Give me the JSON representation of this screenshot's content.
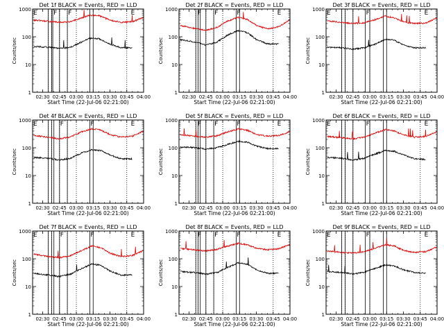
{
  "chart_data": {
    "type": "line",
    "y_scale": "log",
    "ylim": [
      1,
      1000
    ],
    "xlim": [
      "02:21",
      "04:00"
    ],
    "x_ticks": [
      "02:30",
      "02:45",
      "03:00",
      "03:15",
      "03:30",
      "03:45",
      "04:00"
    ],
    "y_ticks": [
      "1",
      "10",
      "100",
      "1000"
    ],
    "ylabel": "Counts/sec",
    "xlabel": "Start Time (22-Jul-06 02:21:00)",
    "colors": {
      "events": "#000000",
      "lld": "#e00000"
    },
    "panels": [
      {
        "title": "Det 1f BLACK = Events, RED = LLD",
        "marker_lines": [
          "02:35",
          "02:38",
          "02:39",
          "02:45",
          "02:52",
          "03:12",
          "03:15"
        ],
        "dotted_lines": [
          "02:35",
          "02:38",
          "02:45",
          "02:52",
          "03:00",
          "03:45"
        ],
        "markers": [
          {
            "label": "E",
            "at": "02:21"
          },
          {
            "label": "F",
            "at": "02:39"
          },
          {
            "label": "F",
            "at": "02:52"
          },
          {
            "label": "E",
            "at": "03:48"
          }
        ],
        "series": [
          {
            "name": "LLD",
            "x": [
              "02:21",
              "02:35",
              "02:45",
              "02:55",
              "03:05",
              "03:12",
              "03:20",
              "03:30",
              "03:40",
              "03:50",
              "04:00"
            ],
            "y": [
              400,
              360,
              330,
              350,
              480,
              600,
              580,
              400,
              330,
              350,
              500
            ]
          },
          {
            "name": "Events",
            "x": [
              "02:21",
              "02:35",
              "02:45",
              "02:55",
              "03:05",
              "03:12",
              "03:20",
              "03:30",
              "03:40",
              "03:50"
            ],
            "y": [
              45,
              42,
              38,
              42,
              65,
              88,
              85,
              55,
              40,
              40
            ]
          }
        ]
      },
      {
        "title": "Det 2f BLACK = Events, RED = LLD",
        "marker_lines": [
          "02:36",
          "02:38",
          "02:40",
          "02:45",
          "02:52",
          "03:12",
          "03:15"
        ],
        "dotted_lines": [
          "02:36",
          "02:38",
          "02:45",
          "02:52",
          "03:00",
          "03:45"
        ],
        "markers": [
          {
            "label": "F",
            "at": "02:37"
          },
          {
            "label": "F",
            "at": "02:52"
          },
          {
            "label": "F",
            "at": "03:12"
          },
          {
            "label": "E",
            "at": "03:48"
          }
        ],
        "series": [
          {
            "name": "LLD",
            "x": [
              "02:21",
              "02:35",
              "02:45",
              "02:55",
              "03:05",
              "03:14",
              "03:22",
              "03:30",
              "03:40",
              "03:50",
              "04:00"
            ],
            "y": [
              260,
              200,
              170,
              220,
              380,
              500,
              420,
              260,
              190,
              230,
              420
            ]
          },
          {
            "name": "Events",
            "x": [
              "02:21",
              "02:35",
              "02:45",
              "02:55",
              "03:05",
              "03:14",
              "03:22",
              "03:30",
              "03:40",
              "03:50"
            ],
            "y": [
              80,
              65,
              50,
              65,
              120,
              165,
              140,
              80,
              55,
              55
            ]
          }
        ]
      },
      {
        "title": "Det 3f BLACK = Events, RED = LLD",
        "marker_lines": [
          "02:35",
          "02:38",
          "02:45",
          "02:56",
          "03:00",
          "03:12",
          "03:15"
        ],
        "dotted_lines": [
          "02:35",
          "02:38",
          "02:45",
          "03:00",
          "03:45"
        ],
        "markers": [
          {
            "label": "E",
            "at": "02:21"
          },
          {
            "label": "F",
            "at": "02:56"
          },
          {
            "label": "E",
            "at": "03:48"
          }
        ],
        "series": [
          {
            "name": "LLD",
            "x": [
              "02:21",
              "02:35",
              "02:45",
              "02:55",
              "03:05",
              "03:14",
              "03:22",
              "03:30",
              "03:40",
              "03:50",
              "04:00"
            ],
            "y": [
              380,
              330,
              300,
              320,
              420,
              560,
              480,
              350,
              300,
              310,
              480
            ]
          },
          {
            "name": "Events",
            "x": [
              "02:21",
              "02:35",
              "02:45",
              "02:55",
              "03:05",
              "03:14",
              "03:22",
              "03:30",
              "03:40",
              "03:50"
            ],
            "y": [
              42,
              40,
              36,
              40,
              55,
              80,
              75,
              50,
              40,
              40
            ]
          }
        ]
      },
      {
        "title": "Det 4f BLACK = Events, RED = LLD",
        "marker_lines": [
          "02:35",
          "02:38",
          "02:40",
          "02:45",
          "02:52",
          "03:12",
          "03:15"
        ],
        "dotted_lines": [
          "02:35",
          "02:38",
          "02:45",
          "02:52",
          "03:00",
          "03:45"
        ],
        "markers": [
          {
            "label": "E",
            "at": "02:21"
          },
          {
            "label": "F",
            "at": "02:45"
          },
          {
            "label": "F",
            "at": "03:12"
          },
          {
            "label": "E",
            "at": "03:48"
          }
        ],
        "series": [
          {
            "name": "LLD",
            "x": [
              "02:21",
              "02:35",
              "02:45",
              "02:55",
              "03:05",
              "03:14",
              "03:22",
              "03:30",
              "03:40",
              "03:50",
              "04:00"
            ],
            "y": [
              280,
              240,
              210,
              250,
              380,
              480,
              430,
              300,
              240,
              260,
              400
            ]
          },
          {
            "name": "Events",
            "x": [
              "02:21",
              "02:35",
              "02:45",
              "02:55",
              "03:05",
              "03:14",
              "03:22",
              "03:30",
              "03:40",
              "03:50"
            ],
            "y": [
              45,
              42,
              36,
              42,
              65,
              85,
              80,
              55,
              40,
              40
            ]
          }
        ]
      },
      {
        "title": "Det 5f BLACK = Events, RED = LLD",
        "marker_lines": [
          "02:36",
          "02:38",
          "02:40",
          "02:45",
          "02:52",
          "03:12",
          "03:15"
        ],
        "dotted_lines": [
          "02:36",
          "02:38",
          "02:45",
          "02:52",
          "03:00",
          "03:45"
        ],
        "markers": [
          {
            "label": "F",
            "at": "02:37"
          },
          {
            "label": "F",
            "at": "02:52"
          },
          {
            "label": "F",
            "at": "03:12"
          },
          {
            "label": "E",
            "at": "03:48"
          }
        ],
        "series": [
          {
            "name": "LLD",
            "x": [
              "02:21",
              "02:35",
              "02:45",
              "02:55",
              "03:05",
              "03:14",
              "03:22",
              "03:30",
              "03:40",
              "03:50",
              "04:00"
            ],
            "y": [
              300,
              260,
              240,
              270,
              380,
              480,
              430,
              300,
              260,
              280,
              380
            ]
          },
          {
            "name": "Events",
            "x": [
              "02:21",
              "02:35",
              "02:45",
              "02:55",
              "03:05",
              "03:14",
              "03:22",
              "03:30",
              "03:40",
              "03:50"
            ],
            "y": [
              110,
              100,
              90,
              100,
              135,
              170,
              160,
              115,
              95,
              95
            ]
          }
        ]
      },
      {
        "title": "Det 6f BLACK = Events, RED = LLD",
        "marker_lines": [
          "02:35",
          "02:38",
          "02:45",
          "02:56",
          "03:00",
          "03:12",
          "03:15"
        ],
        "dotted_lines": [
          "02:35",
          "02:38",
          "02:45",
          "03:00",
          "03:45"
        ],
        "markers": [
          {
            "label": "E",
            "at": "02:21"
          },
          {
            "label": "F",
            "at": "02:56"
          },
          {
            "label": "E",
            "at": "03:48"
          }
        ],
        "series": [
          {
            "name": "LLD",
            "x": [
              "02:21",
              "02:35",
              "02:45",
              "02:55",
              "03:05",
              "03:14",
              "03:22",
              "03:30",
              "03:40",
              "03:50",
              "04:00"
            ],
            "y": [
              260,
              230,
              210,
              240,
              340,
              450,
              400,
              290,
              240,
              260,
              380
            ]
          },
          {
            "name": "Events",
            "x": [
              "02:21",
              "02:35",
              "02:45",
              "02:55",
              "03:05",
              "03:14",
              "03:22",
              "03:30",
              "03:40",
              "03:50"
            ],
            "y": [
              45,
              42,
              36,
              42,
              60,
              80,
              75,
              55,
              40,
              38
            ]
          }
        ]
      },
      {
        "title": "Det 7f BLACK = Events, RED = LLD",
        "marker_lines": [
          "02:35",
          "02:38",
          "02:40",
          "02:45",
          "02:52",
          "03:12",
          "03:15"
        ],
        "dotted_lines": [
          "02:35",
          "02:38",
          "02:45",
          "02:52",
          "03:00",
          "03:45"
        ],
        "markers": [
          {
            "label": "E",
            "at": "02:21"
          },
          {
            "label": "F",
            "at": "02:45"
          },
          {
            "label": "F",
            "at": "03:12"
          },
          {
            "label": "E",
            "at": "03:48"
          }
        ],
        "series": [
          {
            "name": "LLD",
            "x": [
              "02:21",
              "02:35",
              "02:45",
              "02:55",
              "03:05",
              "03:14",
              "03:22",
              "03:30",
              "03:40",
              "03:50",
              "04:00"
            ],
            "y": [
              150,
              120,
              110,
              130,
              200,
              290,
              250,
              160,
              120,
              130,
              200
            ]
          },
          {
            "name": "Events",
            "x": [
              "02:21",
              "02:35",
              "02:45",
              "02:55",
              "03:05",
              "03:14",
              "03:22",
              "03:30",
              "03:40",
              "03:50"
            ],
            "y": [
              30,
              26,
              23,
              28,
              45,
              65,
              58,
              36,
              26,
              26
            ]
          }
        ]
      },
      {
        "title": "Det 8f BLACK = Events, RED = LLD",
        "marker_lines": [
          "02:36",
          "02:38",
          "02:40",
          "02:45",
          "02:52",
          "03:12",
          "03:15"
        ],
        "dotted_lines": [
          "02:36",
          "02:38",
          "02:45",
          "02:52",
          "03:00",
          "03:45"
        ],
        "markers": [
          {
            "label": "F",
            "at": "02:37"
          },
          {
            "label": "F",
            "at": "02:52"
          },
          {
            "label": "F",
            "at": "03:12"
          },
          {
            "label": "E",
            "at": "03:48"
          }
        ],
        "series": [
          {
            "name": "LLD",
            "x": [
              "02:21",
              "02:35",
              "02:45",
              "02:55",
              "03:05",
              "03:14",
              "03:22",
              "03:30",
              "03:40",
              "03:50",
              "04:00"
            ],
            "y": [
              240,
              210,
              190,
              220,
              290,
              360,
              320,
              240,
              210,
              230,
              330
            ]
          },
          {
            "name": "Events",
            "x": [
              "02:21",
              "02:35",
              "02:45",
              "02:55",
              "03:05",
              "03:14",
              "03:22",
              "03:30",
              "03:40",
              "03:50"
            ],
            "y": [
              35,
              32,
              28,
              32,
              50,
              72,
              62,
              40,
              30,
              30
            ]
          }
        ]
      },
      {
        "title": "Det 9f BLACK = Events, RED = LLD",
        "marker_lines": [
          "02:35",
          "02:38",
          "02:45",
          "02:56",
          "03:00",
          "03:12",
          "03:15"
        ],
        "dotted_lines": [
          "02:35",
          "02:38",
          "02:45",
          "03:00",
          "03:45"
        ],
        "markers": [
          {
            "label": "E",
            "at": "02:21"
          },
          {
            "label": "F",
            "at": "02:56"
          },
          {
            "label": "E",
            "at": "03:48"
          }
        ],
        "series": [
          {
            "name": "LLD",
            "x": [
              "02:21",
              "02:35",
              "02:45",
              "02:55",
              "03:05",
              "03:14",
              "03:22",
              "03:30",
              "03:40",
              "03:50",
              "04:00"
            ],
            "y": [
              190,
              170,
              160,
              180,
              240,
              320,
              290,
              200,
              170,
              180,
              270
            ]
          },
          {
            "name": "Events",
            "x": [
              "02:21",
              "02:35",
              "02:45",
              "02:55",
              "03:05",
              "03:14",
              "03:22",
              "03:30",
              "03:40",
              "03:50"
            ],
            "y": [
              35,
              32,
              28,
              33,
              45,
              60,
              55,
              40,
              32,
              30
            ]
          }
        ]
      }
    ]
  }
}
